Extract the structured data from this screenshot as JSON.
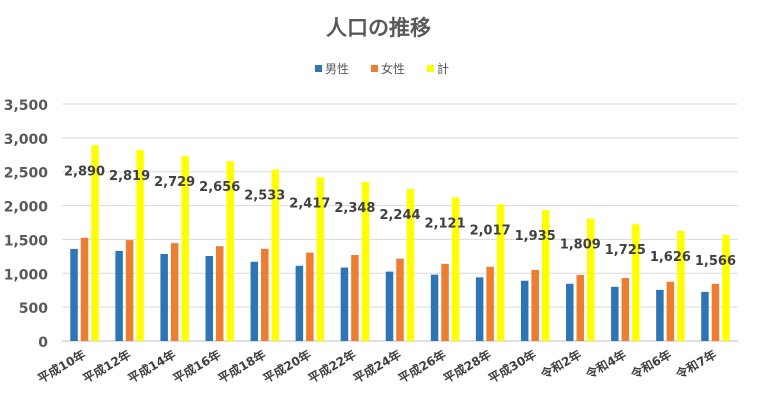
{
  "chart_data": {
    "type": "bar",
    "title": "人口の推移",
    "categories": [
      "平成10年",
      "平成12年",
      "平成14年",
      "平成16年",
      "平成18年",
      "平成20年",
      "平成22年",
      "平成24年",
      "平成26年",
      "平成28年",
      "平成30年",
      "令和2年",
      "令和4年",
      "令和6年",
      "令和7年"
    ],
    "series": [
      {
        "name": "男性",
        "color": "#2e75b6",
        "values": [
          1360,
          1330,
          1285,
          1255,
          1170,
          1110,
          1085,
          1025,
          980,
          940,
          890,
          845,
          800,
          755,
          725
        ]
      },
      {
        "name": "女性",
        "color": "#ed7d31",
        "values": [
          1525,
          1490,
          1445,
          1400,
          1360,
          1305,
          1270,
          1215,
          1140,
          1095,
          1050,
          975,
          930,
          875,
          845
        ]
      },
      {
        "name": "計",
        "color": "#ffff00",
        "values": [
          2890,
          2819,
          2729,
          2656,
          2533,
          2417,
          2348,
          2244,
          2121,
          2017,
          1935,
          1809,
          1725,
          1626,
          1566
        ]
      }
    ],
    "data_labels": [
      "2,890",
      "2,819",
      "2,729",
      "2,656",
      "2,533",
      "2,417",
      "2,348",
      "2,244",
      "2,121",
      "2,017",
      "1,935",
      "1,809",
      "1,725",
      "1,626",
      "1,566"
    ],
    "y_tick_labels": [
      "0",
      "500",
      "1,000",
      "1,500",
      "2,000",
      "2,500",
      "3,000",
      "3,500"
    ],
    "ylim": [
      0,
      3500
    ],
    "y_step": 500,
    "grid": true,
    "legend_position": "top-center"
  }
}
